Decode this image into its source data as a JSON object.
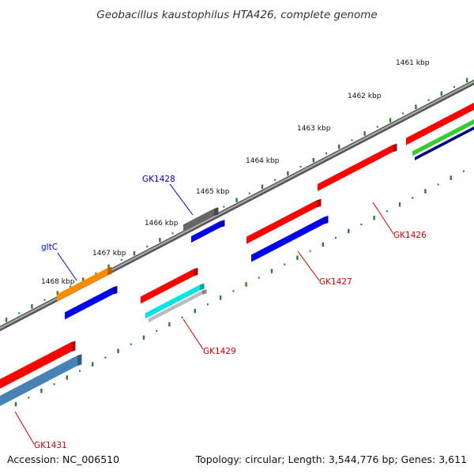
{
  "title": "Geobacillus kaustophilus HTA426, complete genome",
  "ticks": [
    "1461 kbp",
    "1462 kbp",
    "1463 kbp",
    "1464 kbp",
    "1465 kbp",
    "1466 kbp",
    "1467 kbp",
    "1468 kbp"
  ],
  "genes": [
    {
      "id": "GK1426",
      "color": "#ff0000",
      "label_color": "#cc0000"
    },
    {
      "id": "GK1427",
      "color": "#ff0000",
      "label_color": "#cc0000"
    },
    {
      "id": "GK1428",
      "color": "#666666",
      "label_color": "#0000cc"
    },
    {
      "id": "gltC",
      "color": "#ff8c00",
      "label_color": "#0000cc"
    },
    {
      "id": "GK1429",
      "color": "#ff0000",
      "label_color": "#cc0000"
    },
    {
      "id": "GK1431",
      "color": "#ff0000",
      "label_color": "#cc0000"
    }
  ],
  "colors": {
    "backbone": "#888888",
    "tick": "#2e7d32",
    "cog_blue": "#0000ee",
    "cog_cyan": "#00e5e5",
    "cog_green": "#33cc33",
    "cog_navy": "#000080",
    "cog_steel": "#4682b4",
    "cog_silver": "#bbbbbb"
  },
  "footer": {
    "accession": "Accession: NC_006510",
    "topology": "Topology: circular; Length: 3,544,776 bp; Genes: 3,611"
  }
}
